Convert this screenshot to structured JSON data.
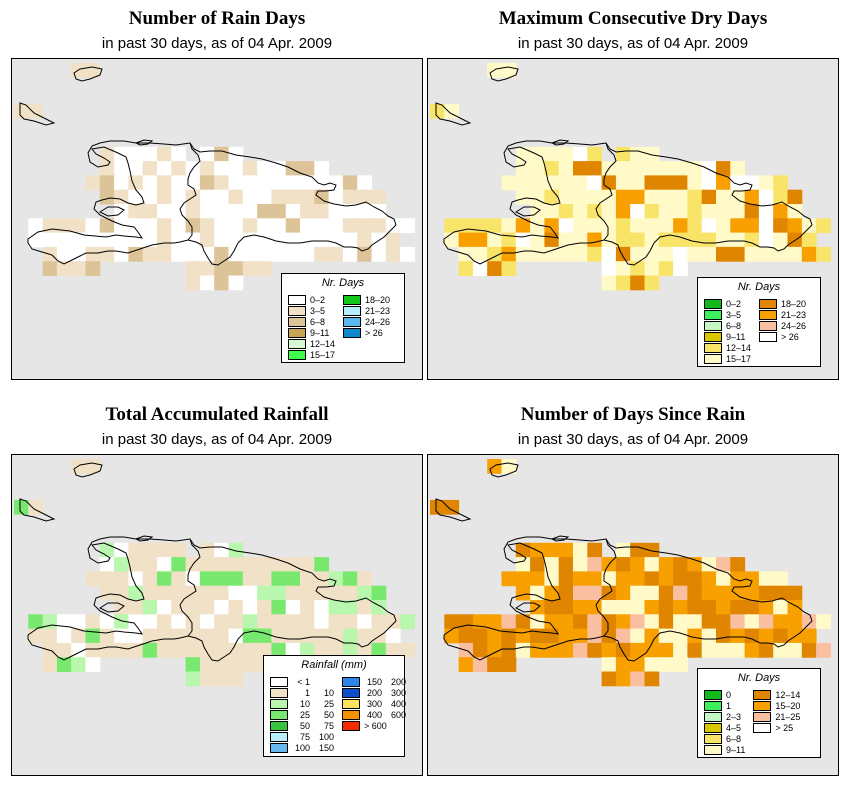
{
  "panels": [
    {
      "title": "Number of Rain Days",
      "subtitle": "in past 30 days, as of  04 Apr. 2009",
      "legend": {
        "title": "Nr. Days",
        "items": [
          {
            "label": "0–2",
            "color": "#ffffff"
          },
          {
            "label": "3–5",
            "color": "#f1e1c6"
          },
          {
            "label": "6–8",
            "color": "#ddc398"
          },
          {
            "label": "9–11",
            "color": "#c9a454"
          },
          {
            "label": "12–14",
            "color": "#d7f8d2"
          },
          {
            "label": "15–17",
            "color": "#3dfc4d"
          },
          {
            "label": "18–20",
            "color": "#16c81e"
          },
          {
            "label": "21–23",
            "color": "#b6eefe"
          },
          {
            "label": "24–26",
            "color": "#58b9f0"
          },
          {
            "label": "> 26",
            "color": "#0f87c8"
          }
        ]
      }
    },
    {
      "title": "Maximum Consecutive Dry Days",
      "subtitle": "in past 30 days, as of  04 Apr. 2009",
      "legend": {
        "title": "Nr. Days",
        "items": [
          {
            "label": "0–2",
            "color": "#12b81c"
          },
          {
            "label": "3–5",
            "color": "#3bf058"
          },
          {
            "label": "6–8",
            "color": "#c5f7c2"
          },
          {
            "label": "9–11",
            "color": "#d9c700"
          },
          {
            "label": "12–14",
            "color": "#f9e46a"
          },
          {
            "label": "15–17",
            "color": "#fffac8"
          },
          {
            "label": "18–20",
            "color": "#df8500"
          },
          {
            "label": "21–23",
            "color": "#f7a000"
          },
          {
            "label": "24–26",
            "color": "#f9bfa0"
          },
          {
            "label": "> 26",
            "color": "#ffffff"
          }
        ]
      }
    },
    {
      "title": "Total Accumulated Rainfall",
      "subtitle": "in past 30 days, as of  04 Apr. 2009",
      "legend": {
        "title": "Rainfall (mm)",
        "items": [
          {
            "lo": "< 1",
            "hi": "",
            "color": "#ffffff"
          },
          {
            "lo": "1",
            "hi": "10",
            "color": "#f1e1c6"
          },
          {
            "lo": "10",
            "hi": "25",
            "color": "#b8f7ad"
          },
          {
            "lo": "25",
            "hi": "50",
            "color": "#78e86e"
          },
          {
            "lo": "50",
            "hi": "75",
            "color": "#38c43c"
          },
          {
            "lo": "75",
            "hi": "100",
            "color": "#b8effa"
          },
          {
            "lo": "100",
            "hi": "150",
            "color": "#67b8ef"
          },
          {
            "lo": "150",
            "hi": "200",
            "color": "#2d86e8"
          },
          {
            "lo": "200",
            "hi": "300",
            "color": "#0b4fcf"
          },
          {
            "lo": "300",
            "hi": "400",
            "color": "#fde35e"
          },
          {
            "lo": "400",
            "hi": "600",
            "color": "#f99200"
          },
          {
            "lo": "> 600",
            "hi": "",
            "color": "#f82a00"
          }
        ]
      }
    },
    {
      "title": "Number of Days Since Rain",
      "subtitle": "in past 30 days, as of  04 Apr. 2009",
      "legend": {
        "title": "Nr. Days",
        "items": [
          {
            "label": "0",
            "color": "#12b81c"
          },
          {
            "label": "1",
            "color": "#3bf058"
          },
          {
            "label": "2–3",
            "color": "#c5f7c2"
          },
          {
            "label": "4–5",
            "color": "#d9c700"
          },
          {
            "label": "6–8",
            "color": "#f9e46a"
          },
          {
            "label": "9–11",
            "color": "#fffac8"
          },
          {
            "label": "12–14",
            "color": "#df8500"
          },
          {
            "label": "15–20",
            "color": "#f7a000"
          },
          {
            "label": "21–25",
            "color": "#f9bfa0"
          },
          {
            "label": "> 25",
            "color": "#ffffff"
          }
        ]
      }
    }
  ]
}
